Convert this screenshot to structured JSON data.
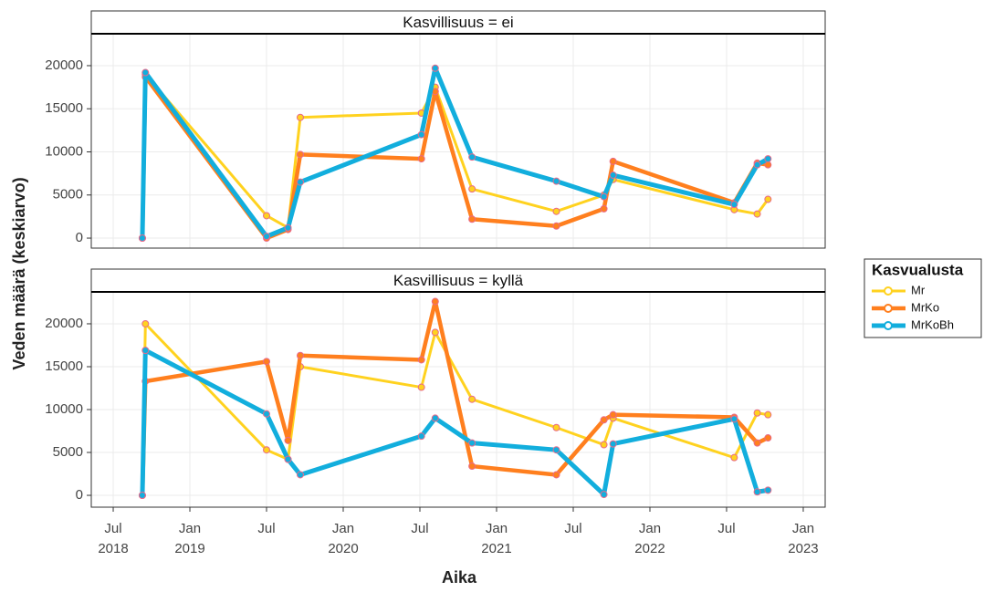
{
  "chart_data": [
    {
      "type": "line",
      "title": "Kasvillisuus = ei",
      "x": [
        2018.69,
        2018.71,
        2019.5,
        2019.64,
        2019.72,
        2020.51,
        2020.6,
        2020.84,
        2021.39,
        2021.7,
        2021.76,
        2022.55,
        2022.7,
        2022.77
      ],
      "series": [
        {
          "name": "Mr",
          "color": "#FFD21F",
          "values": [
            0,
            19000,
            2600,
            1200,
            14000,
            14500,
            17500,
            5700,
            3100,
            5000,
            6800,
            3300,
            2800,
            4500
          ]
        },
        {
          "name": "MrKo",
          "color": "#FF7F1E",
          "values": [
            0,
            18700,
            0,
            1000,
            9700,
            9200,
            17000,
            2200,
            1400,
            3400,
            8900,
            4100,
            8700,
            8500
          ]
        },
        {
          "name": "MrKoBh",
          "color": "#12AEDD",
          "values": [
            0,
            19200,
            200,
            1200,
            6500,
            12000,
            19700,
            9400,
            6600,
            4800,
            7300,
            3900,
            8500,
            9200
          ]
        }
      ],
      "xlim": [
        2018.357,
        2023.143
      ],
      "ylim": [
        -1160,
        23700
      ],
      "yticks": [
        0,
        5000,
        10000,
        15000,
        20000
      ],
      "grid": true
    },
    {
      "type": "line",
      "title": "Kasvillisuus = kyllä",
      "x": [
        2018.69,
        2018.71,
        2019.5,
        2019.64,
        2019.72,
        2020.51,
        2020.6,
        2020.84,
        2021.39,
        2021.7,
        2021.76,
        2022.55,
        2022.7,
        2022.77
      ],
      "series": [
        {
          "name": "Mr",
          "color": "#FFD21F",
          "values": [
            0,
            20000,
            5300,
            4200,
            15000,
            12600,
            19000,
            11200,
            7900,
            5900,
            9000,
            4400,
            9600,
            9400
          ]
        },
        {
          "name": "MrKo",
          "color": "#FF7F1E",
          "values": [
            0,
            13300,
            15600,
            6400,
            16300,
            15800,
            22600,
            3400,
            2400,
            8800,
            9400,
            9100,
            6100,
            6700
          ]
        },
        {
          "name": "MrKoBh",
          "color": "#12AEDD",
          "values": [
            0,
            16900,
            9500,
            4200,
            2400,
            6900,
            9000,
            6100,
            5300,
            100,
            6000,
            8900,
            400,
            600
          ]
        }
      ],
      "xlim": [
        2018.357,
        2023.143
      ],
      "ylim": [
        -1380,
        23720
      ],
      "yticks": [
        0,
        5000,
        10000,
        15000,
        20000
      ],
      "xticks": [
        {
          "value": 2018.5,
          "label": "Jul\n2018"
        },
        {
          "value": 2019,
          "label": "Jan\n2019"
        },
        {
          "value": 2019.5,
          "label": "Jul"
        },
        {
          "value": 2020,
          "label": "Jan\n2020"
        },
        {
          "value": 2020.5,
          "label": "Jul"
        },
        {
          "value": 2021,
          "label": "Jan\n2021"
        },
        {
          "value": 2021.5,
          "label": "Jul"
        },
        {
          "value": 2022,
          "label": "Jan\n2022"
        },
        {
          "value": 2022.5,
          "label": "Jul"
        },
        {
          "value": 2023,
          "label": "Jan\n2023"
        }
      ],
      "grid": true
    }
  ],
  "x_label": "Aika",
  "y_label": "Veden määrä (keskiarvo)",
  "legend_title": "Kasvualusta"
}
